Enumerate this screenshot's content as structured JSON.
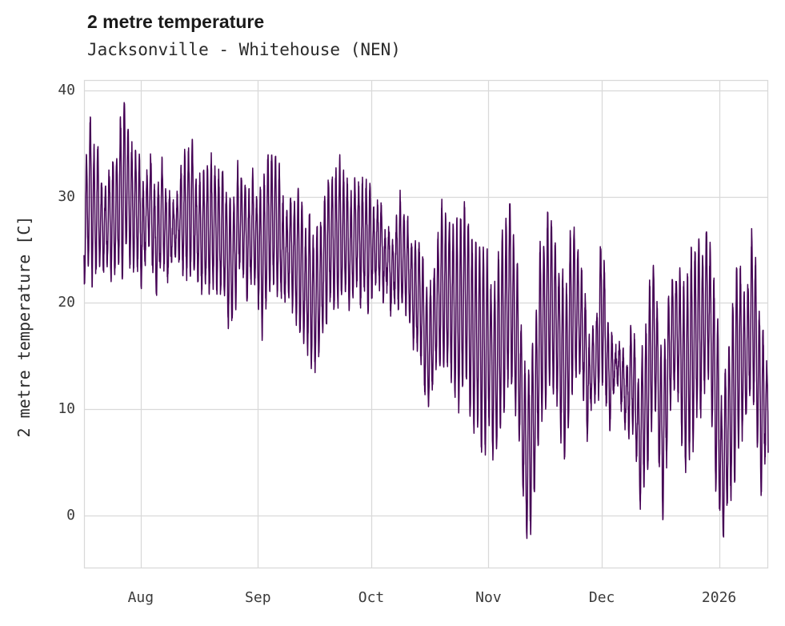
{
  "chart_data": {
    "type": "line",
    "title": "2 metre temperature",
    "subtitle": "Jacksonville - Whitehouse (NEN)",
    "xlabel": "",
    "ylabel": "2 metre temperature [C]",
    "series_name": "2 metre temperature",
    "ylim": [
      -5,
      41
    ],
    "y_ticks": [
      0,
      10,
      20,
      30,
      40
    ],
    "x_ticks": [
      {
        "label": "Aug",
        "day": 15
      },
      {
        "label": "Sep",
        "day": 46
      },
      {
        "label": "Oct",
        "day": 76
      },
      {
        "label": "Nov",
        "day": 107
      },
      {
        "label": "Dec",
        "day": 137
      },
      {
        "label": "2026",
        "day": 168
      }
    ],
    "total_days": 181,
    "sampling_hours": 1,
    "grid": true,
    "legend": "none",
    "line_color": "#440154",
    "grid_color": "#d9d9d9",
    "background": "#ffffff",
    "daily_envelope": [
      [
        0,
        23,
        31
      ],
      [
        2,
        23,
        36.8
      ],
      [
        4,
        24,
        33
      ],
      [
        6,
        22.5,
        31
      ],
      [
        8,
        23,
        34.5
      ],
      [
        10,
        22,
        36.5
      ],
      [
        11,
        24,
        38.3
      ],
      [
        13,
        23,
        35
      ],
      [
        15,
        22,
        31.5
      ],
      [
        17,
        25,
        33
      ],
      [
        19,
        22,
        30.5
      ],
      [
        21,
        23,
        32
      ],
      [
        23,
        23.5,
        30.5
      ],
      [
        25,
        24,
        31
      ],
      [
        27,
        22,
        35.3
      ],
      [
        29,
        23.5,
        33.5
      ],
      [
        31,
        22,
        30.5
      ],
      [
        33,
        21,
        32.5
      ],
      [
        35,
        22,
        31.5
      ],
      [
        37,
        19.5,
        31
      ],
      [
        39,
        18.8,
        29
      ],
      [
        41,
        22,
        33
      ],
      [
        43,
        21,
        31.5
      ],
      [
        45,
        22,
        30.5
      ],
      [
        47,
        17.5,
        29.5
      ],
      [
        49,
        21,
        33.3
      ],
      [
        51,
        22,
        32.5
      ],
      [
        53,
        19,
        29
      ],
      [
        55,
        20,
        31
      ],
      [
        57,
        18,
        29.5
      ],
      [
        59,
        16,
        27.5
      ],
      [
        61,
        13.3,
        26
      ],
      [
        63,
        16,
        29.5
      ],
      [
        65,
        19,
        32
      ],
      [
        67,
        20.5,
        32.5
      ],
      [
        69,
        20,
        33.5
      ],
      [
        71,
        20,
        30
      ],
      [
        73,
        21,
        32
      ],
      [
        75,
        20.5,
        31.5
      ],
      [
        77,
        22,
        29
      ],
      [
        79,
        21,
        28.5
      ],
      [
        81,
        20,
        25.5
      ],
      [
        83,
        21,
        29.5
      ],
      [
        85,
        19,
        28
      ],
      [
        87,
        17,
        26
      ],
      [
        89,
        14.5,
        24
      ],
      [
        91,
        10.5,
        21
      ],
      [
        93,
        13,
        25.5
      ],
      [
        95,
        15,
        28.8
      ],
      [
        97,
        13,
        26.5
      ],
      [
        99,
        11,
        27.5
      ],
      [
        101,
        12,
        28
      ],
      [
        103,
        9.5,
        26
      ],
      [
        105,
        6.5,
        26.3
      ],
      [
        107,
        8,
        23
      ],
      [
        109,
        6,
        22
      ],
      [
        111,
        10,
        26.5
      ],
      [
        113,
        13,
        28.5
      ],
      [
        115,
        8,
        22
      ],
      [
        117,
        -3.4,
        12
      ],
      [
        119,
        2,
        15
      ],
      [
        121,
        8,
        25.5
      ],
      [
        123,
        12,
        28.5
      ],
      [
        125,
        10,
        26
      ],
      [
        127,
        5.5,
        21
      ],
      [
        129,
        12,
        26.5
      ],
      [
        131,
        14,
        25.5
      ],
      [
        133,
        8,
        18
      ],
      [
        135,
        10,
        16.5
      ],
      [
        137,
        13,
        26.7
      ],
      [
        139,
        9,
        16
      ],
      [
        141,
        12.5,
        16.5
      ],
      [
        143,
        8.5,
        14.5
      ],
      [
        145,
        9,
        17.5
      ],
      [
        147,
        0.5,
        13
      ],
      [
        149,
        3,
        20
      ],
      [
        151,
        10,
        24.5
      ],
      [
        153,
        0.3,
        14
      ],
      [
        155,
        9,
        21.5
      ],
      [
        157,
        13,
        24
      ],
      [
        159,
        4,
        21
      ],
      [
        161,
        7,
        25
      ],
      [
        163,
        10,
        24.5
      ],
      [
        165,
        14,
        27.3
      ],
      [
        167,
        3,
        20
      ],
      [
        169,
        -2.8,
        10
      ],
      [
        171,
        2,
        18
      ],
      [
        173,
        6,
        25.5
      ],
      [
        175,
        10,
        21
      ],
      [
        177,
        10,
        27.3
      ],
      [
        179,
        3,
        18.5
      ],
      [
        181,
        5,
        14.5
      ]
    ]
  }
}
